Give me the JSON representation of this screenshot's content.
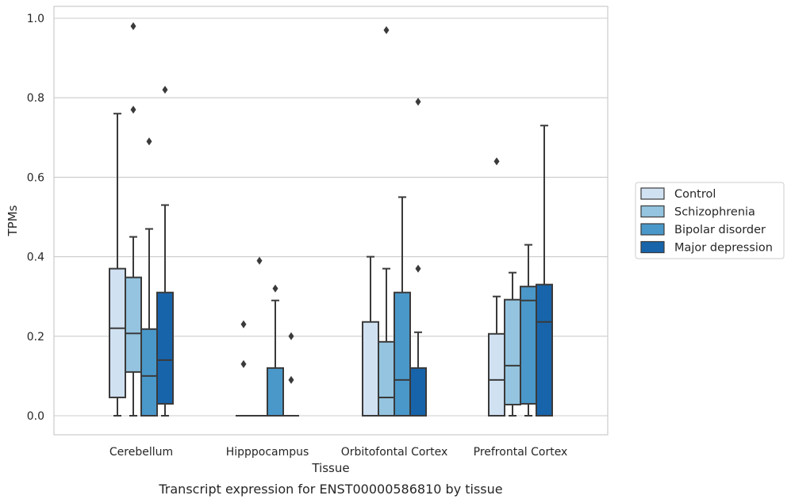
{
  "chart_data": {
    "type": "box",
    "title": "",
    "caption": "Transcript expression for ENST00000586810 by tissue",
    "xlabel": "Tissue",
    "ylabel": "TPMs",
    "ylim": [
      -0.045,
      1.03
    ],
    "yticks": [
      0.0,
      0.2,
      0.4,
      0.6,
      0.8,
      1.0
    ],
    "ytick_labels": [
      "0.0",
      "0.2",
      "0.4",
      "0.6",
      "0.8",
      "1.0"
    ],
    "grid": "horizontal",
    "legend_position": "right",
    "categories": [
      "Cerebellum",
      "Hipppocampus",
      "Orbitofontal Cortex",
      "Prefrontal Cortex"
    ],
    "series": [
      {
        "name": "Control",
        "color": "#d0e1f2",
        "boxes": [
          {
            "min": 0.0,
            "q1": 0.046,
            "median": 0.22,
            "q3": 0.37,
            "max": 0.76,
            "outliers": []
          },
          {
            "min": 0.0,
            "q1": 0.0,
            "median": 0.0,
            "q3": 0.0,
            "max": 0.0,
            "outliers": [
              0.13,
              0.23
            ]
          },
          {
            "min": 0.0,
            "q1": 0.0,
            "median": 0.0,
            "q3": 0.236,
            "max": 0.4,
            "outliers": []
          },
          {
            "min": 0.0,
            "q1": 0.0,
            "median": 0.09,
            "q3": 0.206,
            "max": 0.3,
            "outliers": [
              0.64
            ]
          }
        ]
      },
      {
        "name": "Schizophrenia",
        "color": "#94c4df",
        "boxes": [
          {
            "min": 0.0,
            "q1": 0.11,
            "median": 0.207,
            "q3": 0.348,
            "max": 0.45,
            "outliers": [
              0.77,
              0.98
            ]
          },
          {
            "min": 0.0,
            "q1": 0.0,
            "median": 0.0,
            "q3": 0.0,
            "max": 0.0,
            "outliers": [
              0.39
            ]
          },
          {
            "min": 0.0,
            "q1": 0.0,
            "median": 0.046,
            "q3": 0.186,
            "max": 0.37,
            "outliers": [
              0.97
            ]
          },
          {
            "min": 0.0,
            "q1": 0.028,
            "median": 0.126,
            "q3": 0.292,
            "max": 0.36,
            "outliers": []
          }
        ]
      },
      {
        "name": "Bipolar disorder",
        "color": "#4a98c9",
        "boxes": [
          {
            "min": 0.0,
            "q1": 0.0,
            "median": 0.1,
            "q3": 0.218,
            "max": 0.47,
            "outliers": [
              0.69
            ]
          },
          {
            "min": 0.0,
            "q1": 0.0,
            "median": 0.0,
            "q3": 0.12,
            "max": 0.29,
            "outliers": [
              0.32
            ]
          },
          {
            "min": 0.0,
            "q1": 0.0,
            "median": 0.09,
            "q3": 0.31,
            "max": 0.55,
            "outliers": []
          },
          {
            "min": 0.0,
            "q1": 0.03,
            "median": 0.29,
            "q3": 0.325,
            "max": 0.43,
            "outliers": []
          }
        ]
      },
      {
        "name": "Major depression",
        "color": "#1764ab",
        "boxes": [
          {
            "min": 0.0,
            "q1": 0.03,
            "median": 0.14,
            "q3": 0.31,
            "max": 0.53,
            "outliers": [
              0.82
            ]
          },
          {
            "min": 0.0,
            "q1": 0.0,
            "median": 0.0,
            "q3": 0.0,
            "max": 0.0,
            "outliers": [
              0.09,
              0.2
            ]
          },
          {
            "min": 0.0,
            "q1": 0.0,
            "median": 0.0,
            "q3": 0.12,
            "max": 0.21,
            "outliers": [
              0.37,
              0.79
            ]
          },
          {
            "min": 0.0,
            "q1": 0.0,
            "median": 0.236,
            "q3": 0.33,
            "max": 0.73,
            "outliers": []
          }
        ]
      }
    ],
    "colors": {
      "grid": "#cccccc",
      "frame": "#cccccc",
      "lines": "#3a3a3a"
    }
  }
}
